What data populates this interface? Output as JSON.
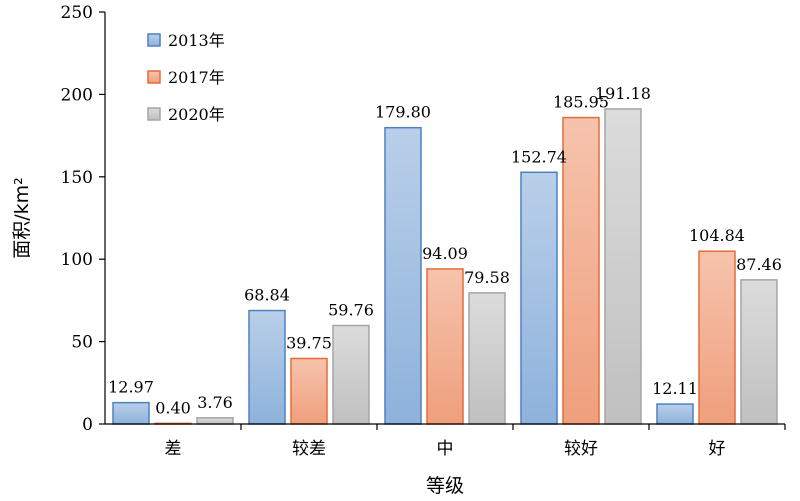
{
  "chart_data": {
    "type": "bar",
    "title": "",
    "xlabel": "等级",
    "ylabel": "面积/km²",
    "ylim": [
      0,
      250
    ],
    "yticks": [
      "0",
      "50",
      "100",
      "150",
      "200",
      "250"
    ],
    "grid": false,
    "legend": "top-left",
    "categories": [
      "差",
      "较差",
      "中",
      "较好",
      "好"
    ],
    "series": [
      {
        "name": "2013年",
        "color": "#4f81bd",
        "values": [
          12.97,
          68.84,
          179.8,
          152.74,
          12.11
        ],
        "labels": [
          "12.97",
          "68.84",
          "179.80",
          "152.74",
          "12.11"
        ]
      },
      {
        "name": "2017年",
        "color": "#e46c3a",
        "values": [
          0.4,
          39.75,
          94.09,
          185.95,
          104.84
        ],
        "labels": [
          "0.40",
          "39.75",
          "94.09",
          "185.95",
          "104.84"
        ]
      },
      {
        "name": "2020年",
        "color": "#a5a5a5",
        "values": [
          3.76,
          59.76,
          79.58,
          191.18,
          87.46
        ],
        "labels": [
          "3.76",
          "59.76",
          "79.58",
          "191.18",
          "87.46"
        ]
      }
    ]
  }
}
